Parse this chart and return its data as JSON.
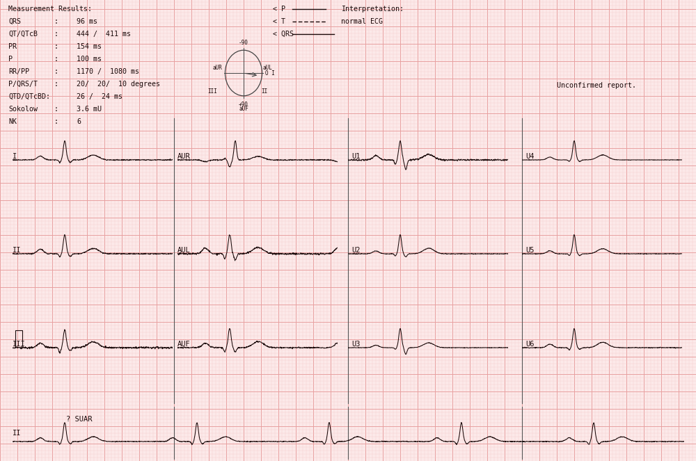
{
  "bg_color": "#fce9e9",
  "grid_minor_color": "#f5c8c8",
  "grid_major_color": "#e8a0a0",
  "ecg_color": "#1a0a0a",
  "text_color": "#1a0808",
  "fig_width": 10.0,
  "fig_height": 6.63,
  "labels": [
    "Measurement Results:",
    "QRS",
    "QT/QTcB",
    "PR",
    "P",
    "RR/PP",
    "P/QRS/T",
    "QTD/QTcBD:",
    "Sokolow",
    "NK"
  ],
  "colons": [
    "",
    ":",
    ":",
    ":",
    ":",
    ":",
    ":",
    "",
    ":",
    ":"
  ],
  "values": [
    "",
    "96 ms",
    "444 /  411 ms",
    "154 ms",
    "100 ms",
    "1170 /  1080 ms",
    "20/  20/  10 degrees",
    "26 /  24 ms",
    "3.6 mU",
    "6"
  ]
}
